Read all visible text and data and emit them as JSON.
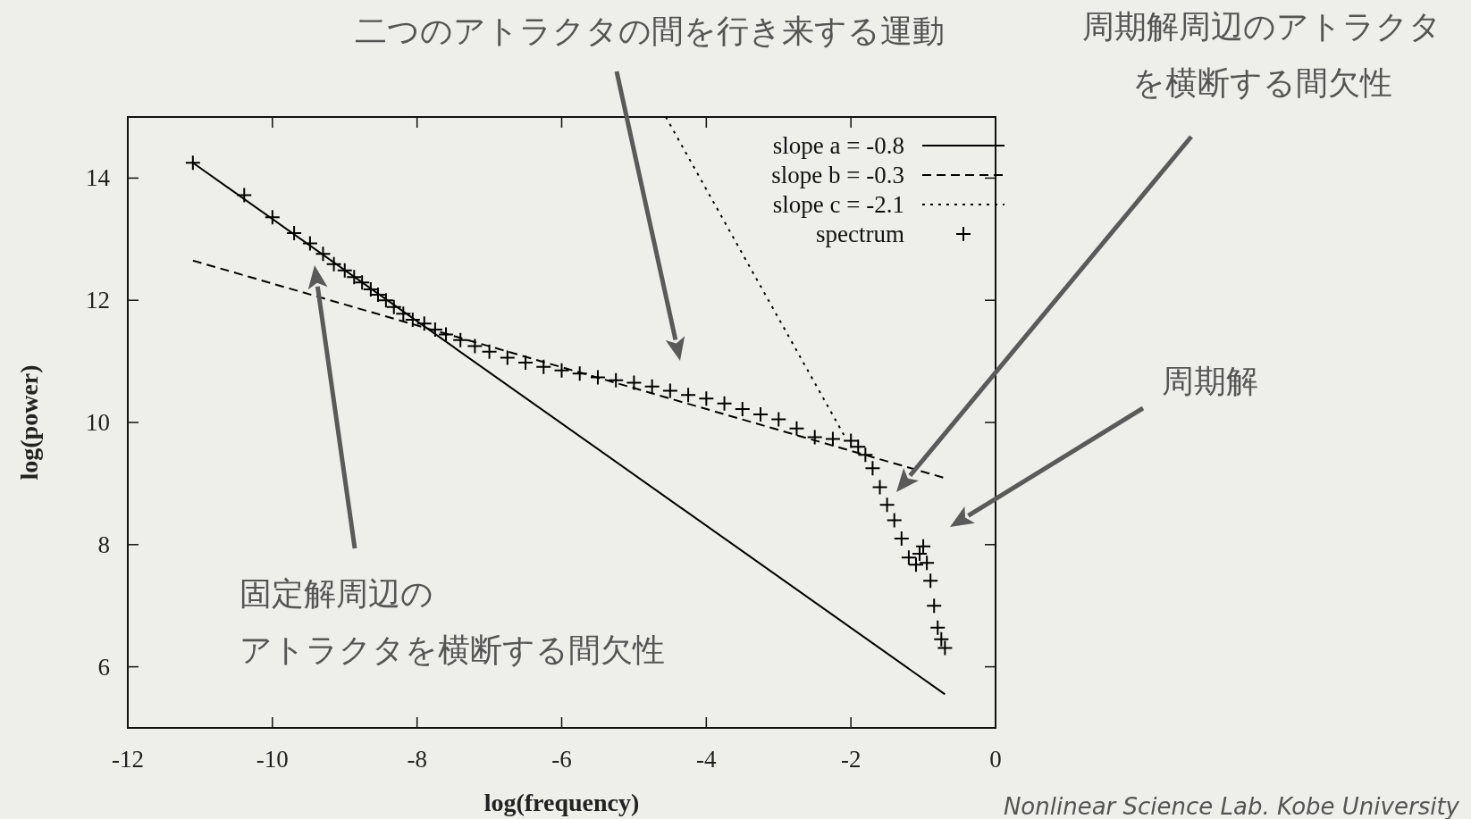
{
  "chart_data": {
    "type": "scatter",
    "xlabel": "log(frequency)",
    "ylabel": "log(power)",
    "xlim": [
      -12,
      0
    ],
    "ylim": [
      5,
      15
    ],
    "xticks": [
      -12,
      -10,
      -8,
      -6,
      -4,
      -2,
      0
    ],
    "yticks": [
      6,
      8,
      10,
      12,
      14
    ],
    "grid": false,
    "legend": "top right",
    "series": [
      {
        "name": "slope a = -0.8",
        "type": "line",
        "line_style": "solid",
        "color": "#000000",
        "x": [
          -11.1,
          -0.7
        ],
        "values": [
          14.25,
          5.55
        ]
      },
      {
        "name": "slope b = -0.3",
        "type": "line",
        "line_style": "dashed",
        "color": "#000000",
        "x": [
          -11.1,
          -0.7
        ],
        "values": [
          12.65,
          9.09
        ]
      },
      {
        "name": "slope c = -2.1",
        "type": "line",
        "line_style": "dotted",
        "color": "#000000",
        "x": [
          -4.56,
          -2.09
        ],
        "values": [
          15,
          9.78
        ]
      },
      {
        "name": "spectrum",
        "type": "scatter",
        "marker": "cross",
        "color": "#000000",
        "x": [
          -11.1,
          -10.39,
          -10.0,
          -9.7,
          -9.48,
          -9.3,
          -9.15,
          -9.0,
          -8.87,
          -8.76,
          -8.64,
          -8.54,
          -8.43,
          -8.32,
          -8.19,
          -8.06,
          -7.9,
          -7.75,
          -7.6,
          -7.4,
          -7.2,
          -7.0,
          -6.75,
          -6.5,
          -6.25,
          -6.0,
          -5.75,
          -5.5,
          -5.25,
          -5.0,
          -4.75,
          -4.5,
          -4.25,
          -4.0,
          -3.75,
          -3.5,
          -3.25,
          -3.0,
          -2.75,
          -2.5,
          -2.25,
          -2.0,
          -1.9,
          -1.8,
          -1.7,
          -1.6,
          -1.5,
          -1.4,
          -1.3,
          -1.2,
          -1.1,
          -1.05,
          -1.0,
          -0.95,
          -0.9,
          -0.85,
          -0.8,
          -0.75,
          -0.7
        ],
        "values": [
          14.25,
          13.72,
          13.36,
          13.1,
          12.93,
          12.76,
          12.59,
          12.49,
          12.38,
          12.29,
          12.18,
          12.09,
          12.0,
          11.89,
          11.78,
          11.68,
          11.62,
          11.52,
          11.44,
          11.35,
          11.25,
          11.16,
          11.06,
          10.98,
          10.91,
          10.85,
          10.8,
          10.74,
          10.69,
          10.65,
          10.59,
          10.52,
          10.45,
          10.39,
          10.31,
          10.22,
          10.13,
          10.05,
          9.9,
          9.76,
          9.73,
          9.7,
          9.6,
          9.47,
          9.25,
          8.94,
          8.65,
          8.4,
          8.1,
          7.79,
          7.67,
          7.85,
          7.97,
          7.7,
          7.41,
          7.0,
          6.64,
          6.45,
          6.31
        ]
      }
    ],
    "annotations": [
      "二つのアトラクタの間を行き来する運動",
      "周期解周辺のアトラクタを横断する間欠性",
      "周期解",
      "固定解周辺のアトラクタを横断する間欠性",
      "Nonlinear Science Lab. Kobe University"
    ]
  }
}
